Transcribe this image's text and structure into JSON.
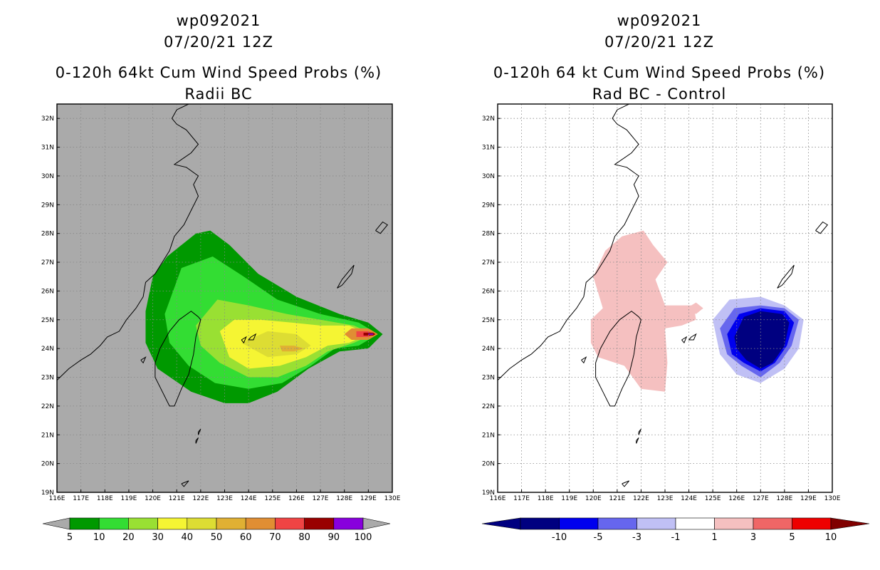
{
  "chart_data": [
    {
      "type": "heatmap",
      "title": "0-120h 64kt Cum Wind Speed Probs (%)",
      "title_lines": [
        "wp092021",
        "07/20/21 12Z",
        "0-120h 64kt Cum Wind Speed Probs (%)",
        "Radii BC"
      ],
      "storm_id": "wp092021",
      "datetime": "07/20/21 12Z",
      "subtitle": "Radii BC",
      "x_range": [
        116,
        130
      ],
      "y_range": [
        19,
        32.5
      ],
      "x_ticks": [
        "116E",
        "117E",
        "118E",
        "119E",
        "120E",
        "121E",
        "122E",
        "123E",
        "124E",
        "125E",
        "126E",
        "127E",
        "128E",
        "129E",
        "130E"
      ],
      "y_ticks": [
        "19N",
        "20N",
        "21N",
        "22N",
        "23N",
        "24N",
        "25N",
        "26N",
        "27N",
        "28N",
        "29N",
        "30N",
        "31N",
        "32N"
      ],
      "background": "#aaaaaa",
      "grid": true,
      "colorbar": {
        "labels": [
          "5",
          "10",
          "20",
          "30",
          "40",
          "50",
          "60",
          "70",
          "80",
          "90",
          "100"
        ],
        "colors": [
          "#009900",
          "#33dd33",
          "#99e033",
          "#f5f533",
          "#dddd33",
          "#e0b033",
          "#e08e33",
          "#f04444",
          "#990000",
          "#8800dd"
        ],
        "under": "#aaaaaa",
        "over": "#aaaaaa"
      },
      "contour_levels": [
        {
          "min": 5,
          "color": "#009900",
          "outline": [
            [
              120.6,
              27.2
            ],
            [
              121.8,
              28.0
            ],
            [
              122.4,
              28.1
            ],
            [
              123.2,
              27.6
            ],
            [
              124.4,
              26.6
            ],
            [
              126.0,
              25.8
            ],
            [
              127.8,
              25.2
            ],
            [
              129.0,
              24.9
            ],
            [
              129.6,
              24.5
            ],
            [
              129.0,
              24.0
            ],
            [
              127.8,
              23.9
            ],
            [
              126.5,
              23.3
            ],
            [
              125.2,
              22.5
            ],
            [
              124.0,
              22.1
            ],
            [
              123.0,
              22.1
            ],
            [
              121.6,
              22.5
            ],
            [
              120.2,
              23.3
            ],
            [
              119.7,
              24.2
            ],
            [
              119.7,
              25.3
            ],
            [
              120.0,
              26.5
            ]
          ]
        },
        {
          "min": 10,
          "color": "#33dd33",
          "outline": [
            [
              120.5,
              25.2
            ],
            [
              121.2,
              26.8
            ],
            [
              122.5,
              27.2
            ],
            [
              123.8,
              26.5
            ],
            [
              125.2,
              25.7
            ],
            [
              127.0,
              25.2
            ],
            [
              128.6,
              24.9
            ],
            [
              129.4,
              24.5
            ],
            [
              128.6,
              24.1
            ],
            [
              127.6,
              24.0
            ],
            [
              126.6,
              23.4
            ],
            [
              125.4,
              22.8
            ],
            [
              124.0,
              22.6
            ],
            [
              122.6,
              22.8
            ],
            [
              121.5,
              23.4
            ],
            [
              120.7,
              24.2
            ]
          ]
        },
        {
          "min": 20,
          "color": "#99e033",
          "outline": [
            [
              121.8,
              24.8
            ],
            [
              122.7,
              25.7
            ],
            [
              124.0,
              25.5
            ],
            [
              125.6,
              25.2
            ],
            [
              127.0,
              25.0
            ],
            [
              128.4,
              24.8
            ],
            [
              129.2,
              24.5
            ],
            [
              128.4,
              24.2
            ],
            [
              127.3,
              23.9
            ],
            [
              126.4,
              23.4
            ],
            [
              125.2,
              23.0
            ],
            [
              124.0,
              23.0
            ],
            [
              122.8,
              23.5
            ],
            [
              122.0,
              24.1
            ]
          ]
        },
        {
          "min": 30,
          "color": "#f5f533",
          "outline": [
            [
              122.8,
              24.6
            ],
            [
              123.4,
              25.0
            ],
            [
              124.5,
              25.0
            ],
            [
              125.8,
              24.9
            ],
            [
              127.0,
              24.8
            ],
            [
              128.2,
              24.8
            ],
            [
              129.0,
              24.5
            ],
            [
              128.2,
              24.2
            ],
            [
              127.3,
              24.1
            ],
            [
              126.4,
              23.7
            ],
            [
              125.3,
              23.4
            ],
            [
              124.0,
              23.3
            ],
            [
              123.2,
              23.7
            ]
          ]
        },
        {
          "min": 40,
          "color": "#dddd33",
          "outline": [
            [
              123.7,
              24.2
            ],
            [
              124.8,
              24.6
            ],
            [
              126.0,
              24.5
            ],
            [
              126.6,
              24.1
            ],
            [
              126.0,
              23.8
            ],
            [
              124.8,
              23.7
            ]
          ]
        },
        {
          "min": 50,
          "color": "#e0b033",
          "outline": [
            [
              125.3,
              24.1
            ],
            [
              125.9,
              24.1
            ],
            [
              126.3,
              24.0
            ],
            [
              125.9,
              23.9
            ],
            [
              125.4,
              23.9
            ]
          ]
        },
        {
          "min": 60,
          "color": "#e08e33",
          "outline": [
            [
              128.3,
              24.7
            ],
            [
              129.0,
              24.7
            ],
            [
              129.4,
              24.5
            ],
            [
              129.0,
              24.3
            ],
            [
              128.3,
              24.3
            ],
            [
              128.0,
              24.5
            ]
          ]
        },
        {
          "min": 70,
          "color": "#f04444",
          "outline": [
            [
              128.5,
              24.6
            ],
            [
              129.0,
              24.6
            ],
            [
              129.3,
              24.5
            ],
            [
              129.0,
              24.4
            ],
            [
              128.5,
              24.4
            ]
          ]
        },
        {
          "min": 80,
          "color": "#990000",
          "outline": [
            [
              128.8,
              24.55
            ],
            [
              129.2,
              24.55
            ],
            [
              129.3,
              24.5
            ],
            [
              129.2,
              24.45
            ],
            [
              128.8,
              24.45
            ]
          ]
        },
        {
          "min": 90,
          "color": "#8800dd",
          "outline": [
            [
              129.0,
              24.52
            ],
            [
              129.2,
              24.52
            ],
            [
              129.2,
              24.48
            ],
            [
              129.0,
              24.48
            ]
          ]
        }
      ]
    },
    {
      "type": "heatmap",
      "title": "0-120h 64 kt Cum Wind Speed Probs (%)",
      "title_lines": [
        "wp092021",
        "07/20/21 12Z",
        "0-120h 64 kt Cum Wind Speed Probs (%)",
        "Rad BC - Control"
      ],
      "storm_id": "wp092021",
      "datetime": "07/20/21 12Z",
      "subtitle": "Rad BC - Control",
      "x_range": [
        116,
        130
      ],
      "y_range": [
        19,
        32.5
      ],
      "x_ticks": [
        "116E",
        "117E",
        "118E",
        "119E",
        "120E",
        "121E",
        "122E",
        "123E",
        "124E",
        "125E",
        "126E",
        "127E",
        "128E",
        "129E",
        "130E"
      ],
      "y_ticks": [
        "19N",
        "20N",
        "21N",
        "22N",
        "23N",
        "24N",
        "25N",
        "26N",
        "27N",
        "28N",
        "29N",
        "30N",
        "31N",
        "32N"
      ],
      "background": "#ffffff",
      "grid": true,
      "colorbar": {
        "labels": [
          "-10",
          "-5",
          "-3",
          "-1",
          "1",
          "3",
          "5",
          "10"
        ],
        "colors": [
          "#000080",
          "#0000ee",
          "#6666ee",
          "#c0c0f5",
          "#ffffff",
          "#f5c0c0",
          "#f06666",
          "#ee0000"
        ],
        "under": "#000080",
        "over": "#800000"
      },
      "contour_levels": [
        {
          "min": 1,
          "color": "#f5c0c0",
          "outline": [
            [
              120.0,
              26.5
            ],
            [
              120.5,
              27.4
            ],
            [
              121.2,
              27.9
            ],
            [
              122.1,
              28.1
            ],
            [
              122.5,
              27.6
            ],
            [
              123.1,
              27.0
            ],
            [
              122.6,
              26.4
            ],
            [
              123.0,
              25.5
            ],
            [
              124.2,
              25.5
            ],
            [
              124.3,
              25.0
            ],
            [
              123.7,
              24.8
            ],
            [
              123.0,
              24.7
            ],
            [
              123.1,
              23.5
            ],
            [
              123.0,
              22.5
            ],
            [
              122.0,
              22.6
            ],
            [
              121.3,
              23.4
            ],
            [
              120.2,
              23.7
            ],
            [
              119.9,
              24.2
            ],
            [
              119.9,
              25.0
            ],
            [
              120.4,
              25.4
            ]
          ]
        },
        {
          "min": 1,
          "color": "#f5c0c0",
          "outline": [
            [
              123.9,
              25.4
            ],
            [
              124.3,
              25.6
            ],
            [
              124.6,
              25.4
            ],
            [
              124.3,
              25.2
            ]
          ]
        },
        {
          "min": -1,
          "color": "#c0c0f5",
          "outline": [
            [
              125.0,
              25.0
            ],
            [
              125.7,
              25.7
            ],
            [
              127.0,
              25.8
            ],
            [
              128.0,
              25.5
            ],
            [
              128.8,
              25.0
            ],
            [
              128.6,
              24.0
            ],
            [
              128.0,
              23.3
            ],
            [
              127.0,
              22.8
            ],
            [
              126.0,
              23.1
            ],
            [
              125.3,
              23.8
            ]
          ]
        },
        {
          "min": -3,
          "color": "#6666ee",
          "outline": [
            [
              125.3,
              24.7
            ],
            [
              125.9,
              25.4
            ],
            [
              127.0,
              25.5
            ],
            [
              128.0,
              25.4
            ],
            [
              128.6,
              25.0
            ],
            [
              128.3,
              24.1
            ],
            [
              127.8,
              23.5
            ],
            [
              127.0,
              23.0
            ],
            [
              126.2,
              23.4
            ],
            [
              125.6,
              23.8
            ]
          ]
        },
        {
          "min": -5,
          "color": "#0000ee",
          "outline": [
            [
              125.6,
              24.5
            ],
            [
              126.1,
              25.2
            ],
            [
              127.0,
              25.4
            ],
            [
              128.0,
              25.3
            ],
            [
              128.4,
              24.9
            ],
            [
              128.1,
              24.1
            ],
            [
              127.6,
              23.5
            ],
            [
              127.0,
              23.2
            ],
            [
              126.3,
              23.5
            ],
            [
              125.8,
              23.8
            ]
          ]
        },
        {
          "min": -10,
          "color": "#000080",
          "outline": [
            [
              125.9,
              24.4
            ],
            [
              126.3,
              25.1
            ],
            [
              127.0,
              25.3
            ],
            [
              127.9,
              25.2
            ],
            [
              128.2,
              24.9
            ],
            [
              128.0,
              24.1
            ],
            [
              127.5,
              23.5
            ],
            [
              127.0,
              23.3
            ],
            [
              126.4,
              23.6
            ],
            [
              126.0,
              24.0
            ]
          ]
        }
      ]
    }
  ]
}
